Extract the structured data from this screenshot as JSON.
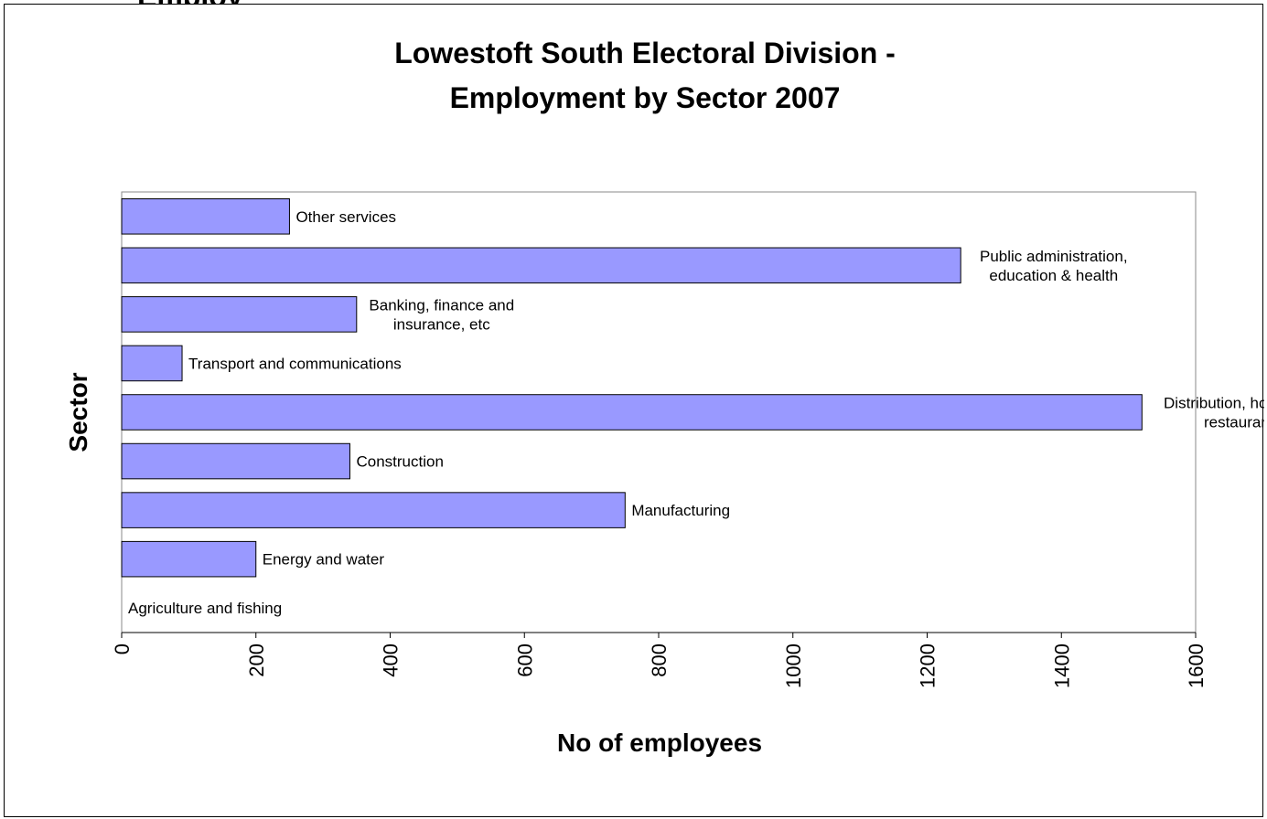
{
  "cut_text": "Employ",
  "chart_data": {
    "type": "bar",
    "orientation": "horizontal",
    "title_lines": [
      "Lowestoft South Electoral Division -",
      "Employment by Sector 2007"
    ],
    "title": "Lowestoft South Electoral Division - Employment by Sector 2007",
    "xlabel": "No of employees",
    "ylabel": "Sector",
    "xlim": [
      0,
      1600
    ],
    "x_ticks": [
      "0",
      "200",
      "400",
      "600",
      "800",
      "1000",
      "1200",
      "1400",
      "1600"
    ],
    "categories": [
      "Agriculture and fishing",
      "Energy and water",
      "Manufacturing",
      "Construction",
      "Distribution, hotels and restaurants",
      "Transport and communications",
      "Banking, finance and insurance, etc",
      "Public administration, education & health",
      "Other services"
    ],
    "label_lines": [
      [
        "Agriculture and fishing"
      ],
      [
        "Energy and water"
      ],
      [
        "Manufacturing"
      ],
      [
        "Construction"
      ],
      [
        "Distribution, hotels and",
        "restaurants"
      ],
      [
        "Transport and communications"
      ],
      [
        "Banking, finance and",
        "insurance, etc"
      ],
      [
        "Public administration,",
        "education & health"
      ],
      [
        "Other services"
      ]
    ],
    "values": [
      0,
      200,
      750,
      340,
      1520,
      90,
      350,
      1250,
      250
    ],
    "bar_color": "#9999ff",
    "grid": false,
    "legend": "none"
  }
}
